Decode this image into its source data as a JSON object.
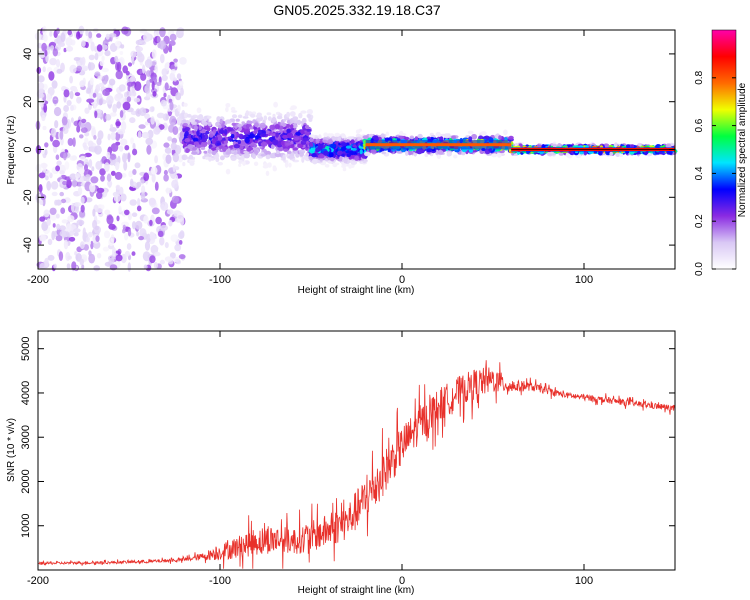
{
  "page": {
    "title": "GN05.2025.332.19.18.C37"
  },
  "chart_data": [
    {
      "type": "heatmap",
      "name": "spectrogram",
      "xlabel": "Height of straight line (km)",
      "ylabel": "Frequency (Hz)",
      "xlim": [
        -200,
        150
      ],
      "ylim": [
        -50,
        50
      ],
      "x_ticks": [
        -200,
        -100,
        0,
        100
      ],
      "y_ticks": [
        -40,
        -20,
        0,
        20,
        40
      ],
      "colorbar": {
        "label": "Normalized spectral amplitude",
        "range": [
          0.0,
          1.0
        ],
        "ticks": [
          0.0,
          0.2,
          0.4,
          0.6,
          0.8
        ],
        "stops": [
          "#ffffff",
          "#d9c8f5",
          "#8a2be2",
          "#0000ff",
          "#00e5ff",
          "#00ff40",
          "#f0ff00",
          "#ff6a00",
          "#ff0000",
          "#ff00aa"
        ]
      },
      "regions": [
        {
          "x_range": [
            -200,
            -120
          ],
          "freq_spread": 50,
          "amplitude": 0.15,
          "description_level": "scattered"
        },
        {
          "x_range": [
            -120,
            -50
          ],
          "freq_center": 5,
          "freq_spread": 12,
          "amplitude": 0.3
        },
        {
          "x_range": [
            -50,
            -20
          ],
          "freq_center": 0,
          "freq_spread": 6,
          "amplitude": 0.45
        },
        {
          "x_range": [
            -20,
            60
          ],
          "freq_center": 2,
          "freq_spread": 4,
          "amplitude": 0.85
        },
        {
          "x_range": [
            60,
            150
          ],
          "freq_center": 0,
          "freq_spread": 2,
          "amplitude": 0.9
        }
      ]
    },
    {
      "type": "line",
      "name": "snr",
      "xlabel": "Height of straight line (km)",
      "ylabel": "SNR (10 * v/v)",
      "xlim": [
        -200,
        150
      ],
      "ylim": [
        0,
        5400
      ],
      "x_ticks": [
        -200,
        -100,
        0,
        100
      ],
      "y_ticks": [
        1000,
        2000,
        3000,
        4000,
        5000
      ],
      "color": "#e8302a",
      "x": [
        -200,
        -180,
        -160,
        -140,
        -120,
        -110,
        -100,
        -90,
        -80,
        -70,
        -60,
        -50,
        -40,
        -30,
        -20,
        -10,
        0,
        10,
        20,
        30,
        40,
        50,
        60,
        70,
        80,
        90,
        100,
        110,
        120,
        130,
        140,
        150
      ],
      "y": [
        150,
        160,
        170,
        190,
        230,
        300,
        400,
        520,
        650,
        700,
        650,
        750,
        900,
        1100,
        1600,
        2200,
        2800,
        3300,
        3700,
        4000,
        4200,
        4300,
        4150,
        4150,
        4050,
        3950,
        3900,
        3850,
        3800,
        3750,
        3700,
        3650
      ],
      "noise": [
        30,
        30,
        30,
        35,
        40,
        80,
        180,
        260,
        320,
        320,
        300,
        350,
        380,
        420,
        500,
        500,
        450,
        420,
        400,
        350,
        350,
        300,
        150,
        100,
        80,
        70,
        70,
        70,
        70,
        70,
        70,
        70
      ]
    }
  ]
}
